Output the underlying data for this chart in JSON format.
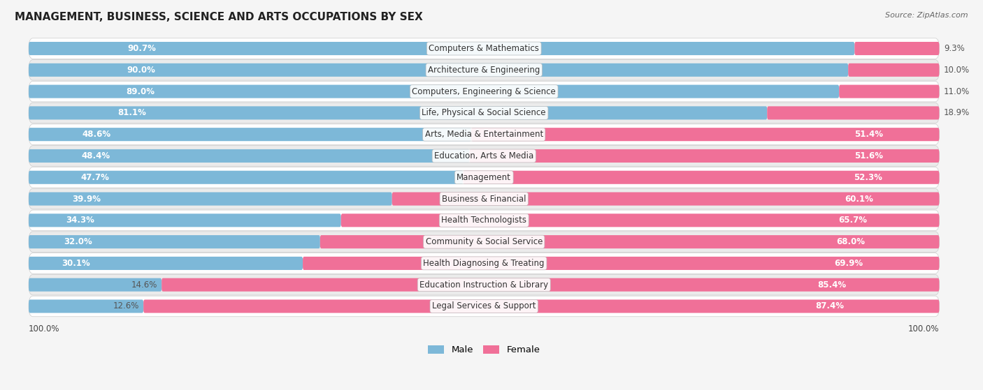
{
  "title": "MANAGEMENT, BUSINESS, SCIENCE AND ARTS OCCUPATIONS BY SEX",
  "source": "Source: ZipAtlas.com",
  "categories": [
    "Computers & Mathematics",
    "Architecture & Engineering",
    "Computers, Engineering & Science",
    "Life, Physical & Social Science",
    "Arts, Media & Entertainment",
    "Education, Arts & Media",
    "Management",
    "Business & Financial",
    "Health Technologists",
    "Community & Social Service",
    "Health Diagnosing & Treating",
    "Education Instruction & Library",
    "Legal Services & Support"
  ],
  "male_pct": [
    90.7,
    90.0,
    89.0,
    81.1,
    48.6,
    48.4,
    47.7,
    39.9,
    34.3,
    32.0,
    30.1,
    14.6,
    12.6
  ],
  "female_pct": [
    9.3,
    10.0,
    11.0,
    18.9,
    51.4,
    51.6,
    52.3,
    60.1,
    65.7,
    68.0,
    69.9,
    85.4,
    87.4
  ],
  "male_color": "#7db8d8",
  "female_color": "#f07098",
  "bg_color": "#f5f5f5",
  "row_bg_light": "#ffffff",
  "row_bg_dark": "#ebebeb",
  "label_fontsize": 8.5,
  "title_fontsize": 11,
  "legend_male": "Male",
  "legend_female": "Female",
  "axis_label": "100.0%"
}
